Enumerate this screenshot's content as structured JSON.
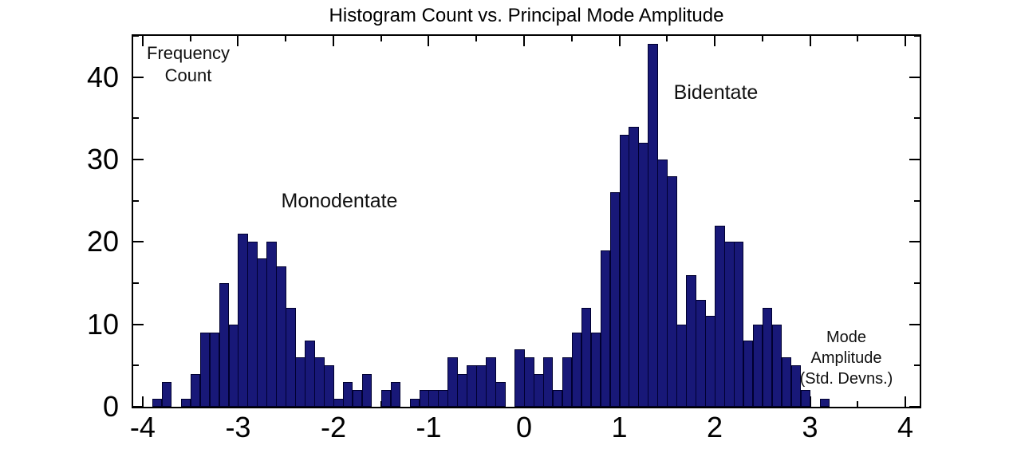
{
  "title": "Histogram Count vs. Principal Mode Amplitude",
  "annotations": {
    "in_plot_y_label_line1": "Frequency",
    "in_plot_y_label_line2": "Count",
    "left_peak_label": "Monodentate",
    "right_peak_label": "Bidentate",
    "in_plot_x_label_line1": "Mode",
    "in_plot_x_label_line2": "Amplitude",
    "in_plot_x_label_line3": "(Std. Devns.)"
  },
  "colors": {
    "bar_fill": "#181878",
    "bar_edge": "#000030",
    "axis": "#000000",
    "background": "#ffffff"
  },
  "chart_data": {
    "type": "bar",
    "subtype": "histogram",
    "title": "Histogram Count vs. Principal Mode Amplitude",
    "xlabel": "Mode Amplitude (Std. Devns.)",
    "ylabel": "Frequency Count",
    "bin_start": -3.9,
    "bin_width": 0.1,
    "counts": [
      1,
      3,
      0,
      1,
      4,
      9,
      9,
      15,
      10,
      21,
      20,
      18,
      20,
      17,
      12,
      6,
      8,
      6,
      5,
      1,
      3,
      2,
      4,
      0,
      2,
      3,
      0,
      1,
      2,
      2,
      2,
      6,
      4,
      5,
      5,
      6,
      3,
      0,
      7,
      6,
      4,
      6,
      2,
      6,
      9,
      12,
      9,
      19,
      26,
      33,
      34,
      32,
      44,
      30,
      28,
      10,
      16,
      13,
      11,
      22,
      20,
      20,
      8,
      10,
      12,
      10,
      6,
      5,
      2,
      0,
      1
    ],
    "peaks": [
      {
        "label": "Monodentate",
        "mode_amplitude": -2.95,
        "count": 21
      },
      {
        "label": "Bidentate",
        "mode_amplitude": 1.35,
        "count": 44
      }
    ],
    "xlim": [
      -4.1,
      4.15
    ],
    "ylim": [
      0,
      45
    ],
    "x_ticks": [
      -4,
      -3,
      -2,
      -1,
      0,
      1,
      2,
      3,
      4
    ],
    "x_tick_labels": [
      "-4",
      "-3",
      "-2",
      "-1",
      "0",
      "1",
      "2",
      "3",
      "4"
    ],
    "y_ticks": [
      0,
      10,
      20,
      30,
      40
    ],
    "y_tick_labels": [
      "0",
      "10",
      "20",
      "30",
      "40"
    ],
    "x_minor_step": 0.5,
    "y_minor_step": 5,
    "grid": false,
    "legend": "none",
    "tick_direction": "in"
  }
}
